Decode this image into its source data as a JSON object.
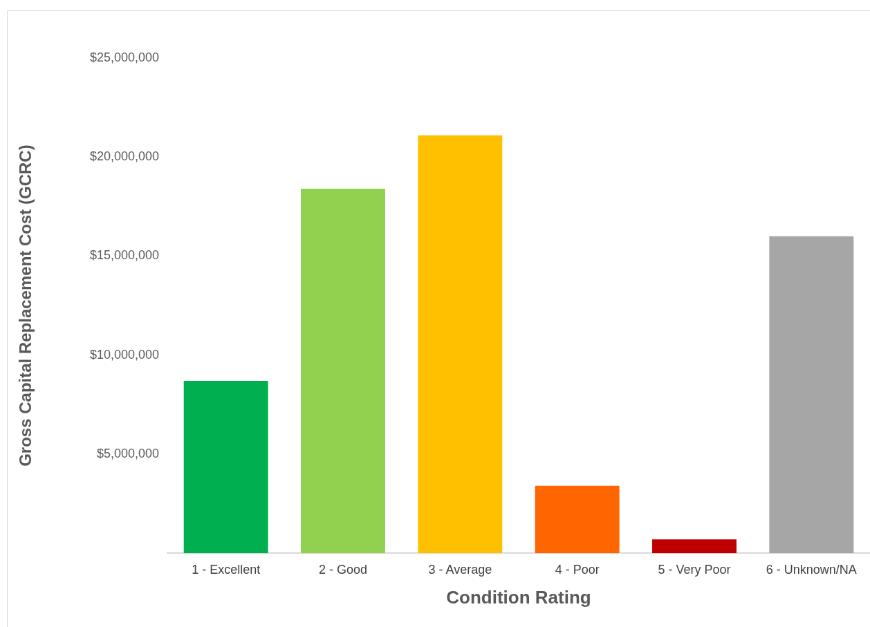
{
  "chart_data": {
    "type": "bar",
    "xlabel": "Condition Rating",
    "ylabel": "Gross Capital Replacement Cost (GCRC)",
    "categories": [
      "1 - Excellent",
      "2 - Good",
      "3 - Average",
      "4 - Poor",
      "5 - Very Poor",
      "6 - Unknown/NA"
    ],
    "values": [
      8700000,
      18400000,
      21100000,
      3400000,
      700000,
      16000000
    ],
    "colors": [
      "#00b050",
      "#92d050",
      "#ffc000",
      "#ff6600",
      "#c00000",
      "#a6a6a6"
    ],
    "ylim": [
      0,
      25000000
    ],
    "yticks": [
      {
        "value": 0,
        "label": null
      },
      {
        "value": 5000000,
        "label": "$5,000,000"
      },
      {
        "value": 10000000,
        "label": "$10,000,000"
      },
      {
        "value": 15000000,
        "label": "$15,000,000"
      },
      {
        "value": 20000000,
        "label": "$20,000,000"
      },
      {
        "value": 25000000,
        "label": "$25,000,000"
      }
    ],
    "grid": false,
    "legend": false
  }
}
